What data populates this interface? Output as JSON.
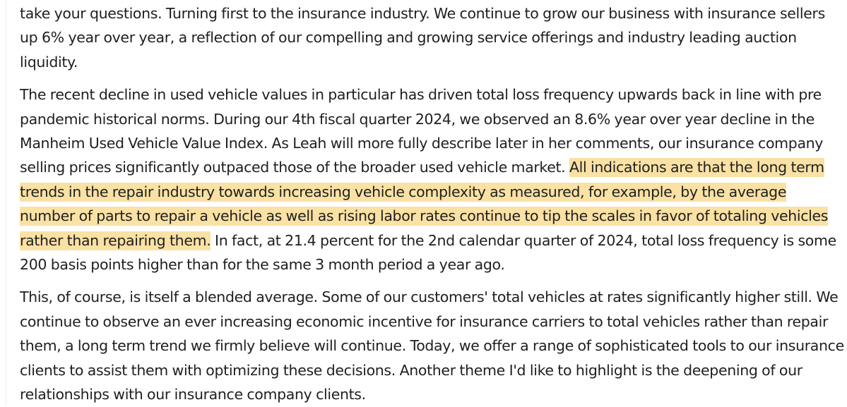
{
  "document": {
    "paragraphs": [
      {
        "text": "take your questions. Turning first to the insurance industry. We continue to grow our business with insurance sellers up 6% year over year, a reflection of our compelling and growing service offerings and industry leading auction liquidity."
      },
      {
        "before": "The recent decline in used vehicle values in particular has driven total loss frequency upwards back in line with pre pandemic historical norms. During our 4th fiscal quarter 2024, we observed an 8.6% year over year decline in the Manheim Used Vehicle Value Index. As Leah will more fully describe later in her comments, our insurance company selling prices significantly outpaced those of the broader used vehicle market. ",
        "highlighted": "All indications are that the long term trends in the repair industry towards increasing vehicle complexity as measured, for example, by the average number of parts to repair a vehicle as well as rising labor rates continue to tip the scales in favor of totaling vehicles rather than repairing them.",
        "after": " In fact, at 21.4 percent for the 2nd calendar quarter of 2024, total loss frequency is some 200 basis points higher than for the same 3 month period a year ago.",
        "highlight_color": "#fae1a4"
      },
      {
        "text": "This, of course, is itself a blended average. Some of our customers' total vehicles at rates significantly higher still. We continue to observe an ever increasing economic incentive for insurance carriers to total vehicles rather than repair them, a long term trend we firmly believe will continue. Today, we offer a range of sophisticated tools to our insurance clients to assist them with optimizing these decisions. Another theme I'd like to highlight is the deepening of our relationships with our insurance company clients."
      }
    ]
  }
}
